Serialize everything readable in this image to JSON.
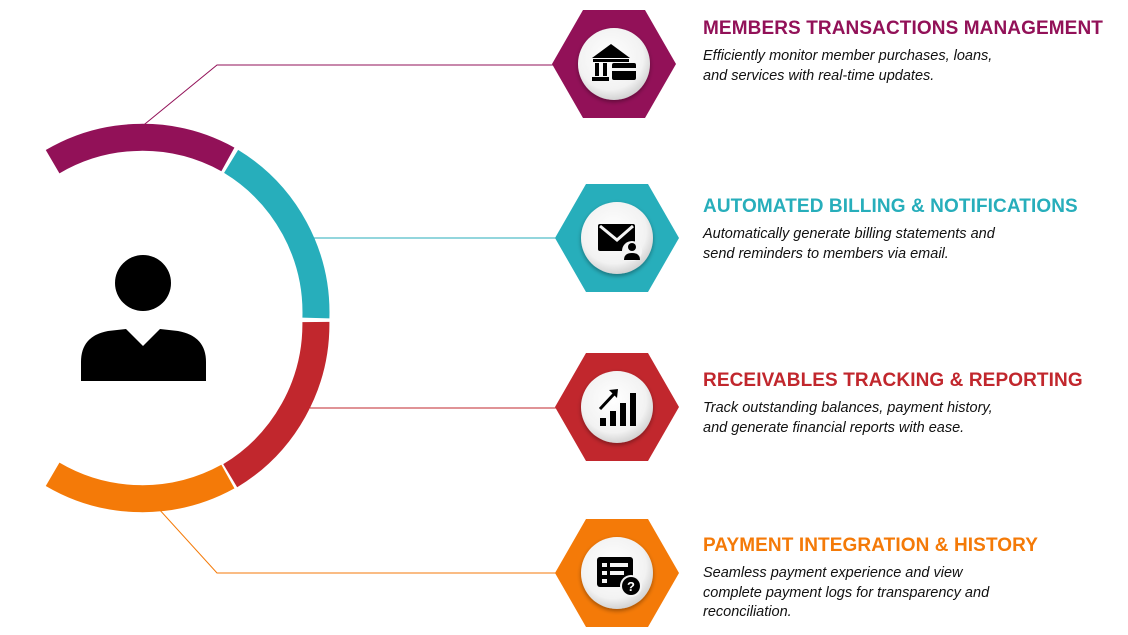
{
  "colors": {
    "members": "#921158",
    "billing": "#27aebb",
    "receivables": "#c1272d",
    "payment": "#f47a08"
  },
  "hub": {
    "icon": "user-icon"
  },
  "features": [
    {
      "key": "members",
      "title": "MEMBERS TRANSACTIONS MANAGEMENT",
      "description": "Efficiently monitor member purchases, loans,\nand services with real-time updates.",
      "icon": "bank-card-icon"
    },
    {
      "key": "billing",
      "title": "AUTOMATED BILLING & NOTIFICATIONS",
      "description": "Automatically generate billing statements and\nsend reminders to members via email.",
      "icon": "mail-user-icon"
    },
    {
      "key": "receivables",
      "title": "RECEIVABLES TRACKING & REPORTING",
      "description": "Track outstanding balances, payment history,\nand generate financial reports with ease.",
      "icon": "growth-chart-icon"
    },
    {
      "key": "payment",
      "title": "PAYMENT INTEGRATION & HISTORY",
      "description": "Seamless payment experience and view\ncomplete payment logs for transparency and\nreconciliation.",
      "icon": "payment-history-icon"
    }
  ]
}
